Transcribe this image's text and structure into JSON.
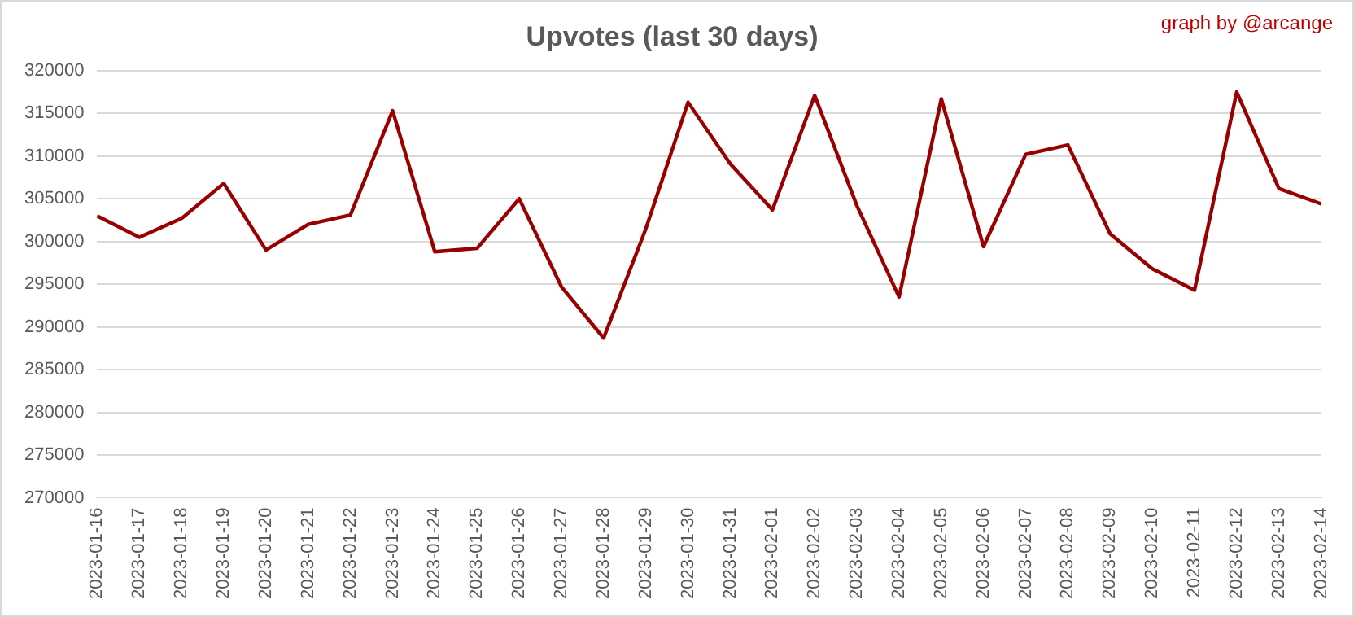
{
  "chart_data": {
    "type": "line",
    "title": "Upvotes (last 30 days)",
    "annotations": [
      "graph by @arcange"
    ],
    "categories": [
      "2023-01-16",
      "2023-01-17",
      "2023-01-18",
      "2023-01-19",
      "2023-01-20",
      "2023-01-21",
      "2023-01-22",
      "2023-01-23",
      "2023-01-24",
      "2023-01-25",
      "2023-01-26",
      "2023-01-27",
      "2023-01-28",
      "2023-01-29",
      "2023-01-30",
      "2023-01-31",
      "2023-02-01",
      "2023-02-02",
      "2023-02-03",
      "2023-02-04",
      "2023-02-05",
      "2023-02-06",
      "2023-02-07",
      "2023-02-08",
      "2023-02-09",
      "2023-02-10",
      "2023-02-11",
      "2023-02-12",
      "2023-02-13",
      "2023-02-14"
    ],
    "series": [
      {
        "color": "#990000",
        "values": [
          303000,
          300500,
          302700,
          306800,
          299000,
          302000,
          303100,
          315300,
          298800,
          299200,
          305000,
          294700,
          288700,
          301500,
          316300,
          309100,
          303700,
          317100,
          304200,
          293500,
          316700,
          299400,
          310200,
          311300,
          300900,
          296800,
          294300,
          317500,
          306200,
          304400
        ]
      }
    ],
    "ylim": [
      270000,
      320000
    ],
    "yticks": [
      270000,
      275000,
      280000,
      285000,
      290000,
      295000,
      300000,
      305000,
      310000,
      315000,
      320000
    ],
    "grid": "y",
    "legend": false,
    "marker": "none",
    "line_style": "solid"
  }
}
